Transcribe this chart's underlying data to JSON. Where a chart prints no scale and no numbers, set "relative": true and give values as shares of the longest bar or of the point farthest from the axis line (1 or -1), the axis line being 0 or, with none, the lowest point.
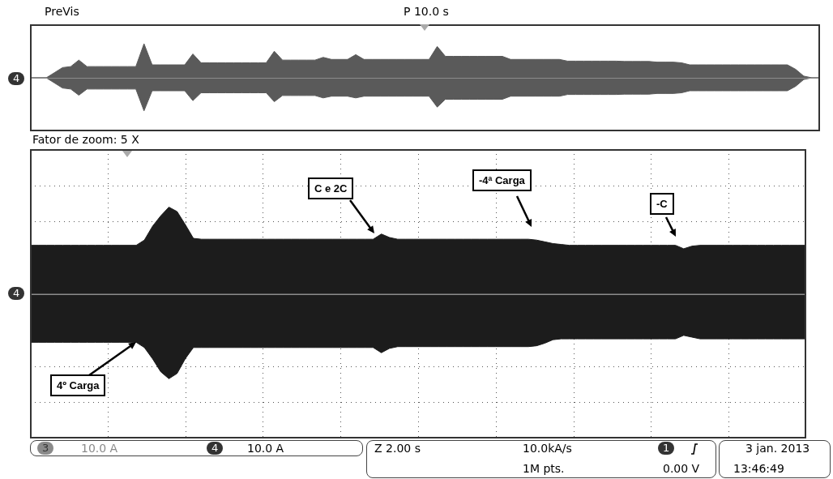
{
  "chart_data": [
    {
      "type": "area",
      "title": "PreVis",
      "subtitle": "P 10.0 s",
      "relative": true,
      "legend": false,
      "grid": false,
      "marker": "none",
      "annotations": [
        "4"
      ],
      "categories": [
        null,
        null,
        null,
        null,
        null,
        null,
        null,
        null,
        null,
        null,
        null,
        null,
        null,
        null,
        null,
        null,
        null,
        null,
        null,
        null,
        null,
        null,
        null,
        null,
        null,
        null,
        null,
        null,
        null,
        null,
        null,
        null,
        null,
        null,
        null,
        null,
        null,
        null,
        null,
        null,
        null,
        null,
        null,
        null,
        null,
        null,
        null,
        null,
        null,
        null,
        null,
        null,
        null,
        null,
        null,
        null,
        null,
        null,
        null,
        null,
        null,
        null,
        null,
        null,
        null,
        null,
        null,
        null,
        null,
        null,
        null,
        null,
        null,
        null,
        null,
        null,
        null,
        null,
        null,
        null,
        null,
        null,
        null,
        null,
        null,
        null,
        null,
        null,
        null,
        null,
        null,
        null,
        null,
        null,
        null,
        null,
        null,
        null
      ],
      "series": [
        {
          "color": "#5a5a5a",
          "values": [
            0,
            0,
            0,
            0.15,
            0.3,
            0.33,
            0.52,
            0.33,
            0.33,
            0.33,
            0.33,
            0.33,
            0.33,
            0.33,
            1.0,
            0.38,
            0.38,
            0.38,
            0.38,
            0.38,
            0.7,
            0.44,
            0.44,
            0.44,
            0.44,
            0.44,
            0.44,
            0.44,
            0.44,
            0.44,
            0.78,
            0.52,
            0.52,
            0.52,
            0.52,
            0.52,
            0.6,
            0.54,
            0.54,
            0.54,
            0.68,
            0.54,
            0.54,
            0.54,
            0.54,
            0.54,
            0.54,
            0.54,
            0.54,
            0.54,
            0.92,
            0.63,
            0.63,
            0.63,
            0.63,
            0.63,
            0.63,
            0.63,
            0.63,
            0.54,
            0.54,
            0.54,
            0.54,
            0.54,
            0.54,
            0.54,
            0.49,
            0.49,
            0.49,
            0.49,
            0.49,
            0.49,
            0.49,
            0.48,
            0.48,
            0.48,
            0.48,
            0.46,
            0.46,
            0.46,
            0.44,
            0.38,
            0.38,
            0.38,
            0.38,
            0.38,
            0.38,
            0.38,
            0.38,
            0.38,
            0.38,
            0.38,
            0.38,
            0.38,
            0.25,
            0.05,
            0,
            0
          ]
        },
        {
          "color": "#5a5a5a",
          "values": [
            0,
            0,
            0,
            -0.15,
            -0.3,
            -0.33,
            -0.51,
            -0.33,
            -0.33,
            -0.33,
            -0.33,
            -0.33,
            -0.33,
            -0.33,
            -0.97,
            -0.38,
            -0.38,
            -0.38,
            -0.38,
            -0.38,
            -0.67,
            -0.44,
            -0.44,
            -0.44,
            -0.44,
            -0.44,
            -0.44,
            -0.44,
            -0.44,
            -0.44,
            -0.7,
            -0.52,
            -0.52,
            -0.52,
            -0.52,
            -0.52,
            -0.59,
            -0.54,
            -0.54,
            -0.54,
            -0.59,
            -0.54,
            -0.54,
            -0.54,
            -0.54,
            -0.54,
            -0.54,
            -0.54,
            -0.54,
            -0.54,
            -0.86,
            -0.63,
            -0.63,
            -0.63,
            -0.63,
            -0.63,
            -0.63,
            -0.63,
            -0.63,
            -0.54,
            -0.54,
            -0.54,
            -0.54,
            -0.54,
            -0.54,
            -0.54,
            -0.49,
            -0.49,
            -0.49,
            -0.49,
            -0.49,
            -0.49,
            -0.49,
            -0.48,
            -0.48,
            -0.48,
            -0.48,
            -0.46,
            -0.46,
            -0.46,
            -0.44,
            -0.38,
            -0.38,
            -0.38,
            -0.38,
            -0.38,
            -0.38,
            -0.38,
            -0.38,
            -0.38,
            -0.38,
            -0.38,
            -0.38,
            -0.38,
            -0.25,
            -0.05,
            0,
            0
          ]
        }
      ]
    },
    {
      "type": "area",
      "title": "Fator de zoom: 5 X",
      "relative": true,
      "legend": false,
      "grid": true,
      "marker": "none",
      "annotations": [
        "4",
        "4º Carga",
        "C e 2C",
        "-4ª Carga",
        "-C",
        "3",
        "10.0 A",
        "4",
        "10.0 A",
        "Z 2.00 s",
        "10.0kA/s",
        "1M pts.",
        "1",
        "0.00 V",
        "3 jan. 2013",
        "13:46:49"
      ],
      "categories": [
        null,
        null,
        null,
        null,
        null,
        null,
        null,
        null,
        null,
        null,
        null,
        null,
        null,
        null,
        null,
        null,
        null,
        null,
        null,
        null,
        null,
        null,
        null,
        null,
        null,
        null,
        null,
        null,
        null,
        null,
        null,
        null,
        null,
        null,
        null,
        null,
        null,
        null,
        null,
        null,
        null,
        null,
        null,
        null,
        null,
        null,
        null,
        null,
        null,
        null,
        null,
        null,
        null,
        null,
        null,
        null,
        null,
        null,
        null,
        null,
        null,
        null,
        null,
        null,
        null,
        null,
        null,
        null,
        null,
        null,
        null,
        null,
        null,
        null,
        null,
        null,
        null,
        null,
        null,
        null,
        null,
        null,
        null,
        null,
        null,
        null,
        null,
        null,
        null,
        null,
        null,
        null,
        null,
        null,
        null,
        null
      ],
      "series": [
        {
          "color": "#1c1c1c",
          "values": [
            0.56,
            0.56,
            0.56,
            0.56,
            0.56,
            0.56,
            0.56,
            0.56,
            0.56,
            0.56,
            0.56,
            0.56,
            0.56,
            0.56,
            0.62,
            0.78,
            0.9,
            1.0,
            0.95,
            0.8,
            0.64,
            0.63,
            0.63,
            0.63,
            0.63,
            0.63,
            0.63,
            0.63,
            0.63,
            0.63,
            0.63,
            0.63,
            0.63,
            0.63,
            0.63,
            0.63,
            0.63,
            0.63,
            0.63,
            0.63,
            0.63,
            0.63,
            0.63,
            0.69,
            0.65,
            0.63,
            0.63,
            0.63,
            0.63,
            0.63,
            0.63,
            0.63,
            0.63,
            0.63,
            0.63,
            0.63,
            0.63,
            0.63,
            0.63,
            0.63,
            0.63,
            0.63,
            0.62,
            0.6,
            0.58,
            0.57,
            0.56,
            0.56,
            0.56,
            0.56,
            0.56,
            0.56,
            0.56,
            0.56,
            0.56,
            0.56,
            0.56,
            0.56,
            0.56,
            0.56,
            0.52,
            0.55,
            0.56,
            0.56,
            0.56,
            0.56,
            0.56,
            0.56,
            0.56,
            0.56,
            0.56,
            0.56,
            0.56,
            0.56,
            0.56,
            0.56
          ]
        },
        {
          "color": "#1c1c1c",
          "values": [
            -0.56,
            -0.56,
            -0.56,
            -0.56,
            -0.56,
            -0.56,
            -0.56,
            -0.56,
            -0.56,
            -0.56,
            -0.56,
            -0.56,
            -0.56,
            -0.56,
            -0.62,
            -0.75,
            -0.9,
            -0.98,
            -0.92,
            -0.75,
            -0.62,
            -0.62,
            -0.62,
            -0.62,
            -0.62,
            -0.62,
            -0.62,
            -0.62,
            -0.62,
            -0.62,
            -0.62,
            -0.62,
            -0.62,
            -0.62,
            -0.62,
            -0.62,
            -0.62,
            -0.62,
            -0.62,
            -0.62,
            -0.62,
            -0.62,
            -0.62,
            -0.68,
            -0.63,
            -0.61,
            -0.61,
            -0.61,
            -0.61,
            -0.61,
            -0.61,
            -0.61,
            -0.61,
            -0.61,
            -0.61,
            -0.61,
            -0.61,
            -0.61,
            -0.61,
            -0.61,
            -0.61,
            -0.61,
            -0.6,
            -0.57,
            -0.53,
            -0.52,
            -0.52,
            -0.52,
            -0.52,
            -0.52,
            -0.52,
            -0.52,
            -0.52,
            -0.52,
            -0.52,
            -0.52,
            -0.52,
            -0.52,
            -0.52,
            -0.52,
            -0.48,
            -0.5,
            -0.52,
            -0.52,
            -0.52,
            -0.52,
            -0.52,
            -0.52,
            -0.52,
            -0.52,
            -0.52,
            -0.52,
            -0.52,
            -0.52,
            -0.52,
            -0.52
          ]
        }
      ]
    }
  ]
}
